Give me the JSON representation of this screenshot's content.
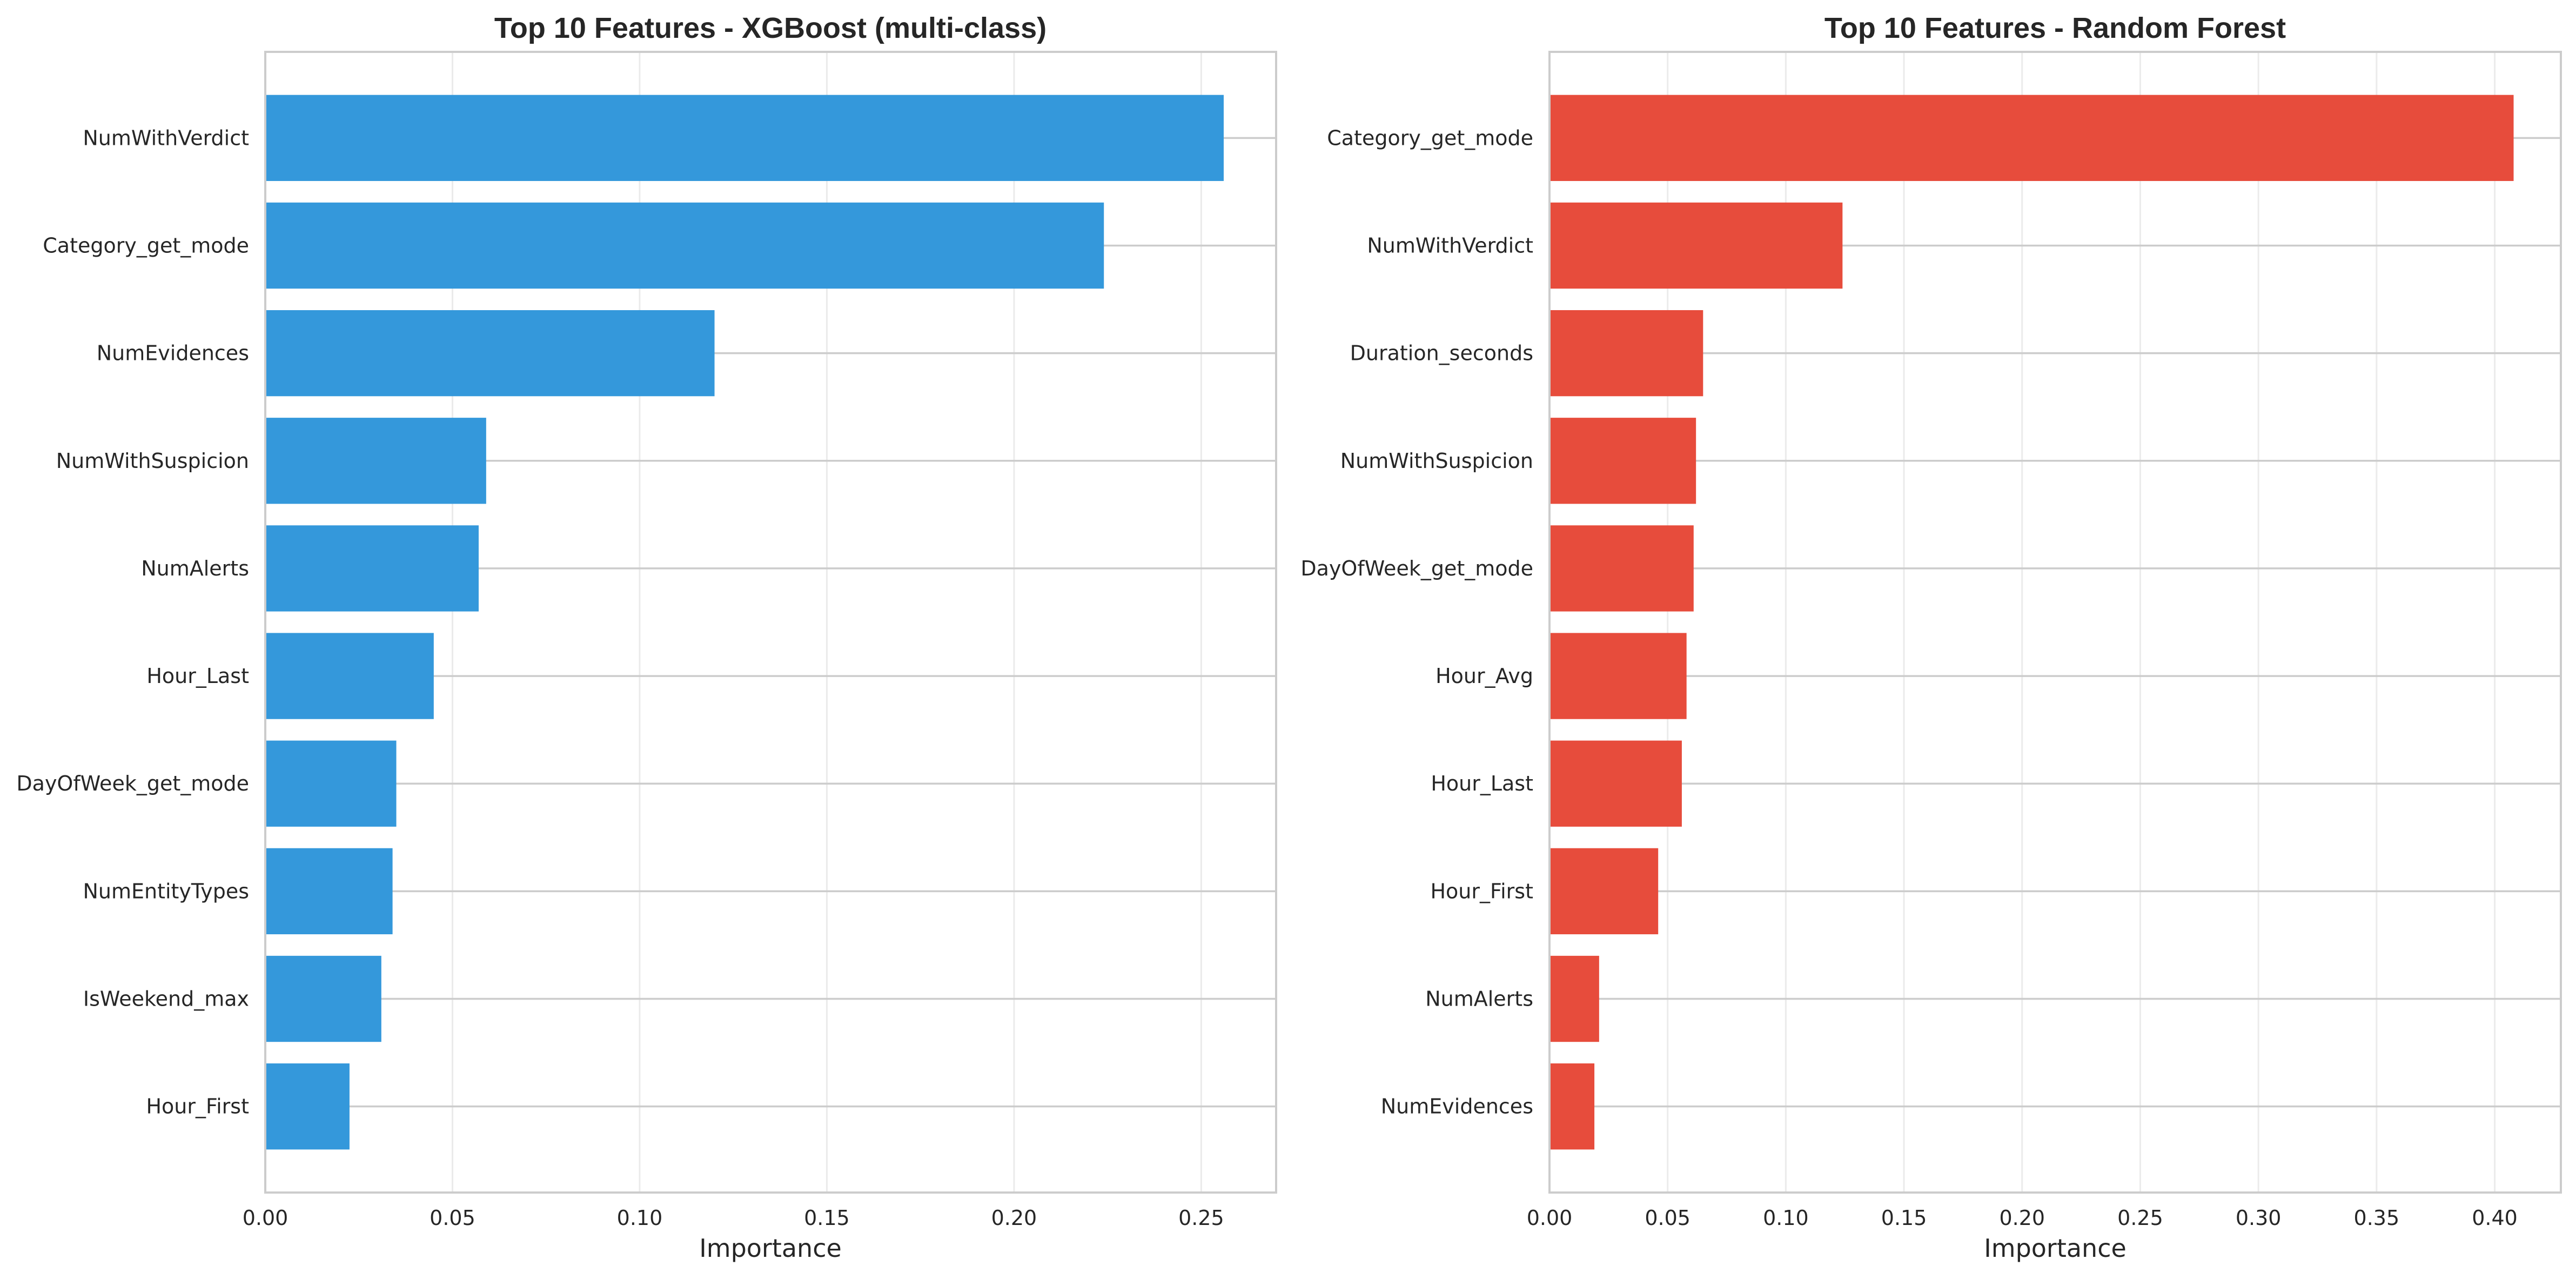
{
  "chart_data": [
    {
      "type": "bar",
      "orientation": "horizontal",
      "title": "Top 10 Features - XGBoost (multi-class)",
      "xlabel": "Importance",
      "ylabel": "",
      "categories": [
        "NumWithVerdict",
        "Category_get_mode",
        "NumEvidences",
        "NumWithSuspicion",
        "NumAlerts",
        "Hour_Last",
        "DayOfWeek_get_mode",
        "NumEntityTypes",
        "IsWeekend_max",
        "Hour_First"
      ],
      "values": [
        0.256,
        0.224,
        0.12,
        0.059,
        0.057,
        0.045,
        0.035,
        0.034,
        0.031,
        0.0225
      ],
      "xlim": [
        0,
        0.27
      ],
      "xticks": [
        0,
        0.05,
        0.1,
        0.15,
        0.2,
        0.25
      ],
      "xtick_labels": [
        "0.00",
        "0.05",
        "0.10",
        "0.15",
        "0.20",
        "0.25"
      ],
      "color": "#3498db",
      "grid": true
    },
    {
      "type": "bar",
      "orientation": "horizontal",
      "title": "Top 10 Features - Random Forest",
      "xlabel": "Importance",
      "ylabel": "",
      "categories": [
        "Category_get_mode",
        "NumWithVerdict",
        "Duration_seconds",
        "NumWithSuspicion",
        "DayOfWeek_get_mode",
        "Hour_Avg",
        "Hour_Last",
        "Hour_First",
        "NumAlerts",
        "NumEvidences"
      ],
      "values": [
        0.408,
        0.124,
        0.065,
        0.062,
        0.061,
        0.058,
        0.056,
        0.046,
        0.021,
        0.019
      ],
      "xlim": [
        0,
        0.428
      ],
      "xticks": [
        0,
        0.05,
        0.1,
        0.15,
        0.2,
        0.25,
        0.3,
        0.35,
        0.4
      ],
      "xtick_labels": [
        "0.00",
        "0.05",
        "0.10",
        "0.15",
        "0.20",
        "0.25",
        "0.30",
        "0.35",
        "0.40"
      ],
      "color": "#e74c3c",
      "grid": true
    }
  ]
}
